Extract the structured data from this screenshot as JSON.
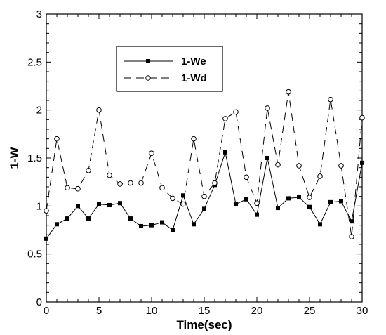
{
  "chart_data": {
    "type": "line",
    "title": "",
    "xlabel": "Time(sec)",
    "ylabel": "1-W",
    "xlim": [
      0,
      30
    ],
    "ylim": [
      0,
      3
    ],
    "xticks": [
      0,
      5,
      10,
      15,
      20,
      25,
      30
    ],
    "yticks": [
      0,
      0.5,
      1,
      1.5,
      2,
      2.5,
      3
    ],
    "x": [
      0,
      1,
      2,
      3,
      4,
      5,
      6,
      7,
      8,
      9,
      10,
      11,
      12,
      13,
      14,
      15,
      16,
      17,
      18,
      19,
      20,
      21,
      22,
      23,
      24,
      25,
      26,
      27,
      28,
      29,
      30
    ],
    "grid": false,
    "legend_position": "upper-left-center",
    "series": [
      {
        "name": "1-We",
        "style": "solid",
        "marker": "filled-square",
        "color": "#000000",
        "values": [
          0.66,
          0.81,
          0.87,
          1.0,
          0.87,
          1.02,
          1.01,
          1.03,
          0.87,
          0.79,
          0.8,
          0.83,
          0.75,
          1.11,
          0.81,
          0.97,
          1.22,
          1.56,
          1.02,
          1.07,
          0.91,
          1.5,
          0.98,
          1.08,
          1.09,
          0.99,
          0.81,
          1.04,
          1.05,
          0.84,
          1.45
        ]
      },
      {
        "name": "1-Wd",
        "style": "dashed",
        "marker": "open-circle",
        "color": "#000000",
        "values": [
          0.95,
          1.7,
          1.19,
          1.18,
          1.37,
          2.0,
          1.32,
          1.23,
          1.24,
          1.24,
          1.55,
          1.19,
          1.08,
          1.02,
          1.7,
          1.1,
          1.24,
          1.91,
          1.98,
          1.3,
          1.03,
          2.02,
          1.43,
          2.19,
          1.42,
          1.09,
          1.31,
          2.11,
          1.42,
          0.68,
          1.92
        ]
      }
    ]
  }
}
